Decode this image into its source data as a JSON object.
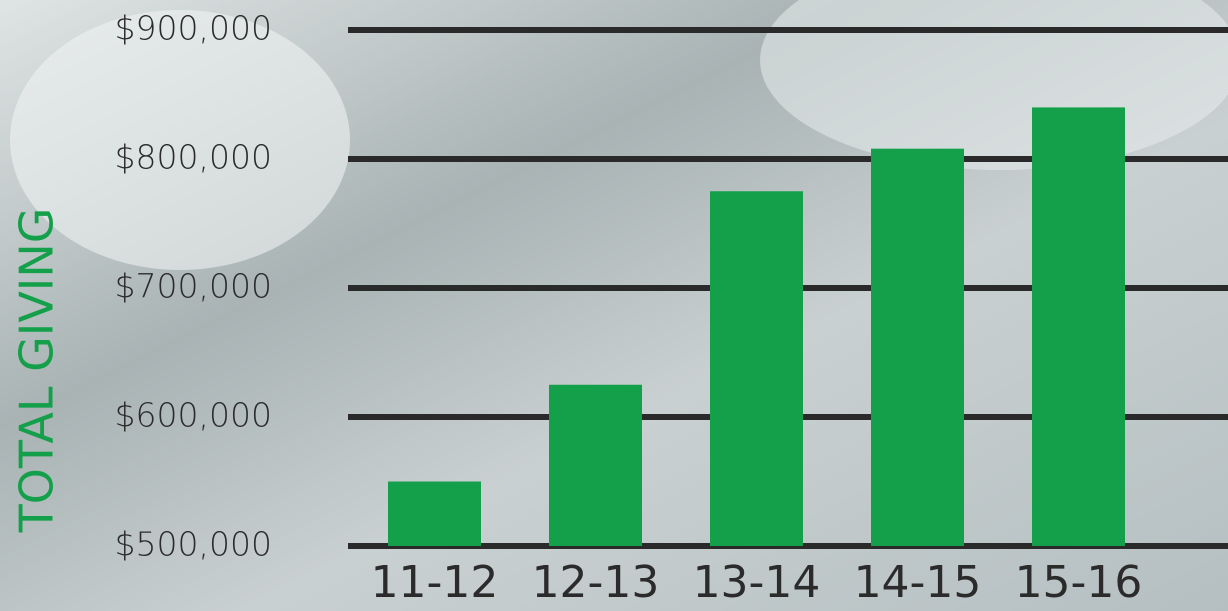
{
  "chart_data": {
    "type": "bar",
    "y_label": "TOTAL GIVING",
    "categories": [
      "11-12",
      "12-13",
      "13-14",
      "14-15",
      "15-16"
    ],
    "values": [
      550000,
      625000,
      775000,
      808000,
      840000
    ],
    "color": "#14a04a",
    "ylim": [
      500000,
      900000
    ],
    "yticks": [
      {
        "value": 500000,
        "label": "$500,000"
      },
      {
        "value": 600000,
        "label": "$600,000"
      },
      {
        "value": 700000,
        "label": "$700,000"
      },
      {
        "value": 800000,
        "label": "$800,000"
      },
      {
        "value": 900000,
        "label": "$900,000"
      }
    ],
    "grid": true
  }
}
